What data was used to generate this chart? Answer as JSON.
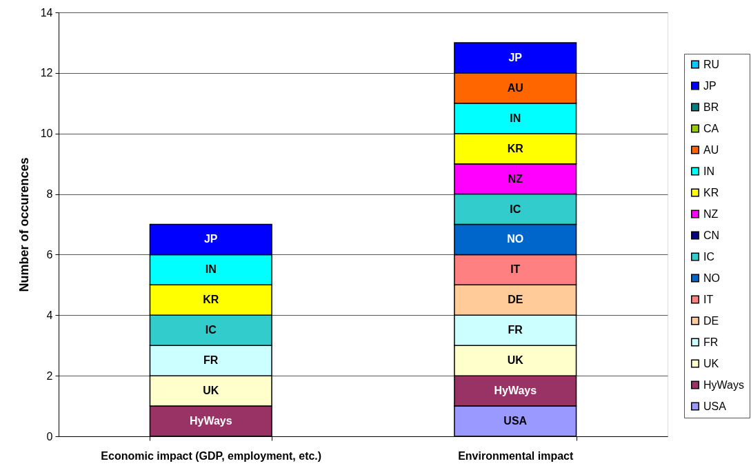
{
  "chart_data": {
    "type": "bar",
    "stacked": true,
    "ylabel": "Number of occurences",
    "categories": [
      "Economic impact (GDP, employment, etc.)",
      "Environmental impact"
    ],
    "ylim": [
      0,
      14
    ],
    "yticks": [
      0,
      2,
      4,
      6,
      8,
      10,
      12,
      14
    ],
    "grid": "y",
    "legend": "right",
    "series": [
      {
        "name": "USA",
        "color": "#9999ff",
        "values": [
          0,
          1
        ],
        "value_labels": [
          null,
          "USA"
        ]
      },
      {
        "name": "HyWays",
        "color": "#993366",
        "values": [
          1,
          1
        ],
        "value_labels": [
          "HyWays",
          "HyWays"
        ]
      },
      {
        "name": "UK",
        "color": "#ffffcc",
        "values": [
          1,
          1
        ],
        "value_labels": [
          "UK",
          "UK"
        ]
      },
      {
        "name": "FR",
        "color": "#ccffff",
        "values": [
          1,
          1
        ],
        "value_labels": [
          "FR",
          "FR"
        ]
      },
      {
        "name": "DE",
        "color": "#ffcc99",
        "values": [
          0,
          1
        ],
        "value_labels": [
          null,
          "DE"
        ]
      },
      {
        "name": "IT",
        "color": "#ff8080",
        "values": [
          0,
          1
        ],
        "value_labels": [
          null,
          "IT"
        ]
      },
      {
        "name": "NO",
        "color": "#0066cc",
        "values": [
          0,
          1
        ],
        "value_labels": [
          null,
          "NO"
        ]
      },
      {
        "name": "IC",
        "color": "#33cccc",
        "values": [
          1,
          1
        ],
        "value_labels": [
          "IC",
          "IC"
        ]
      },
      {
        "name": "CN",
        "color": "#000080",
        "values": [
          0,
          0
        ],
        "value_labels": [
          null,
          null
        ]
      },
      {
        "name": "NZ",
        "color": "#ff00ff",
        "values": [
          0,
          1
        ],
        "value_labels": [
          null,
          "NZ"
        ]
      },
      {
        "name": "KR",
        "color": "#ffff00",
        "values": [
          1,
          1
        ],
        "value_labels": [
          "KR",
          "KR"
        ]
      },
      {
        "name": "IN",
        "color": "#00ffff",
        "values": [
          1,
          1
        ],
        "value_labels": [
          "IN",
          "IN"
        ]
      },
      {
        "name": "AU",
        "color": "#ff6600",
        "values": [
          0,
          1
        ],
        "value_labels": [
          null,
          "AU"
        ]
      },
      {
        "name": "CA",
        "color": "#99cc00",
        "values": [
          0,
          0
        ],
        "value_labels": [
          null,
          null
        ]
      },
      {
        "name": "BR",
        "color": "#008080",
        "values": [
          0,
          0
        ],
        "value_labels": [
          null,
          null
        ]
      },
      {
        "name": "JP",
        "color": "#0000ff",
        "values": [
          1,
          1
        ],
        "value_labels": [
          "JP",
          "JP"
        ]
      },
      {
        "name": "RU",
        "color": "#00ccff",
        "values": [
          0,
          0
        ],
        "value_labels": [
          null,
          null
        ]
      }
    ]
  }
}
